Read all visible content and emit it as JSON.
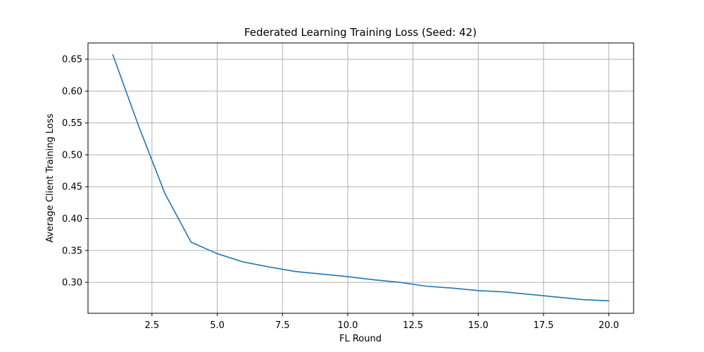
{
  "chart_data": {
    "type": "line",
    "title": "Federated Learning Training Loss (Seed: 42)",
    "xlabel": "FL Round",
    "ylabel": "Average Client Training Loss",
    "xlim": [
      0.05,
      20.95
    ],
    "ylim": [
      0.2515,
      0.6755
    ],
    "xticks": [
      2.5,
      5.0,
      7.5,
      10.0,
      12.5,
      15.0,
      17.5,
      20.0
    ],
    "xtick_labels": [
      "2.5",
      "5.0",
      "7.5",
      "10.0",
      "12.5",
      "15.0",
      "17.5",
      "20.0"
    ],
    "yticks": [
      0.3,
      0.35,
      0.4,
      0.45,
      0.5,
      0.55,
      0.6,
      0.65
    ],
    "ytick_labels": [
      "0.30",
      "0.35",
      "0.40",
      "0.45",
      "0.50",
      "0.55",
      "0.60",
      "0.65"
    ],
    "grid": true,
    "series": [
      {
        "color": "#1f77b4",
        "x": [
          1,
          2,
          3,
          4,
          5,
          6,
          7,
          8,
          9,
          10,
          11,
          12,
          13,
          14,
          15,
          16,
          17,
          18,
          19,
          20
        ],
        "y": [
          0.657,
          0.544,
          0.439,
          0.363,
          0.345,
          0.332,
          0.324,
          0.317,
          0.313,
          0.309,
          0.304,
          0.3,
          0.294,
          0.291,
          0.287,
          0.285,
          0.281,
          0.277,
          0.273,
          0.271
        ]
      }
    ]
  }
}
